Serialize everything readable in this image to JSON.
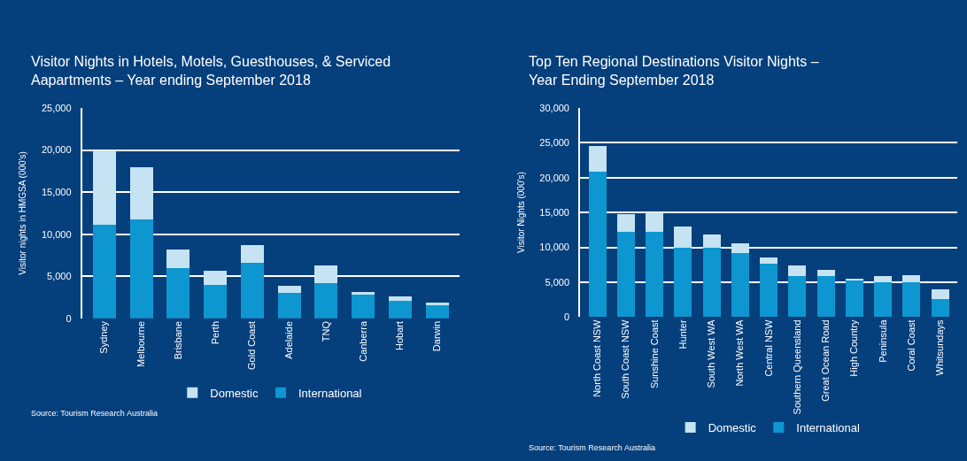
{
  "chart_data": [
    {
      "type": "bar",
      "stacked": true,
      "title": "Visitor Nights in Hotels, Motels, Guesthouses, & Serviced\nAapartments – Year ending September 2018",
      "ylabel": "Visitor nights in HMGSA (000's)",
      "categories": [
        "Sydney",
        "Melbourne",
        "Brisbane",
        "Perth",
        "Gold Coast",
        "Adelaide",
        "TNQ",
        "Canberra",
        "Hobart",
        "Darwin"
      ],
      "series": [
        {
          "name": "International",
          "color": "#0e96d0",
          "values": [
            11100,
            11800,
            6000,
            4000,
            6600,
            3000,
            4200,
            2800,
            2100,
            1500
          ]
        },
        {
          "name": "Domestic",
          "color": "#c5e3f2",
          "values": [
            8900,
            6200,
            2200,
            1650,
            2100,
            900,
            2100,
            300,
            500,
            400
          ]
        }
      ],
      "ylim": [
        0,
        25000
      ],
      "yticks": [
        {
          "value": 0,
          "label": "0"
        },
        {
          "value": 5000,
          "label": "5,000"
        },
        {
          "value": 10000,
          "label": "10,000"
        },
        {
          "value": 15000,
          "label": "15,000"
        },
        {
          "value": 20000,
          "label": "20,000"
        },
        {
          "value": 25000,
          "label": "25,000"
        }
      ],
      "grid": "y",
      "legend": "bottom",
      "annotations": [
        "Source: Tourism Research Australia"
      ]
    },
    {
      "type": "bar",
      "stacked": true,
      "title": "Top Ten Regional Destinations Visitor Nights –\nYear Ending September 2018",
      "ylabel": "Visitor Nights (000's)",
      "categories": [
        "North Coast NSW",
        "South Coast NSW",
        "Sunshine Coast",
        "Hunter",
        "South West WA",
        "North West WA",
        "Central NSW",
        "Southern Queensland",
        "Great Ocean Road",
        "High Country",
        "Peninsula",
        "Coral Coast",
        "Whitsundays"
      ],
      "series": [
        {
          "name": "International",
          "color": "#0e96d0",
          "values": [
            20900,
            12200,
            12200,
            10000,
            9900,
            9200,
            7700,
            5900,
            5900,
            5200,
            5000,
            4950,
            2600
          ]
        },
        {
          "name": "Domestic",
          "color": "#c5e3f2",
          "values": [
            3700,
            2600,
            2800,
            3000,
            2000,
            1400,
            800,
            1550,
            900,
            300,
            850,
            1000,
            1400
          ]
        }
      ],
      "ylim": [
        0,
        30000
      ],
      "yticks": [
        {
          "value": 0,
          "label": "0"
        },
        {
          "value": 5000,
          "label": "5,000"
        },
        {
          "value": 10000,
          "label": "10,000"
        },
        {
          "value": 15000,
          "label": "15,000"
        },
        {
          "value": 20000,
          "label": "20,000"
        },
        {
          "value": 25000,
          "label": "25,000"
        },
        {
          "value": 30000,
          "label": "30,000"
        }
      ],
      "grid": "y",
      "legend": "bottom",
      "annotations": [
        "Source: Tourism Research Australia"
      ]
    }
  ]
}
